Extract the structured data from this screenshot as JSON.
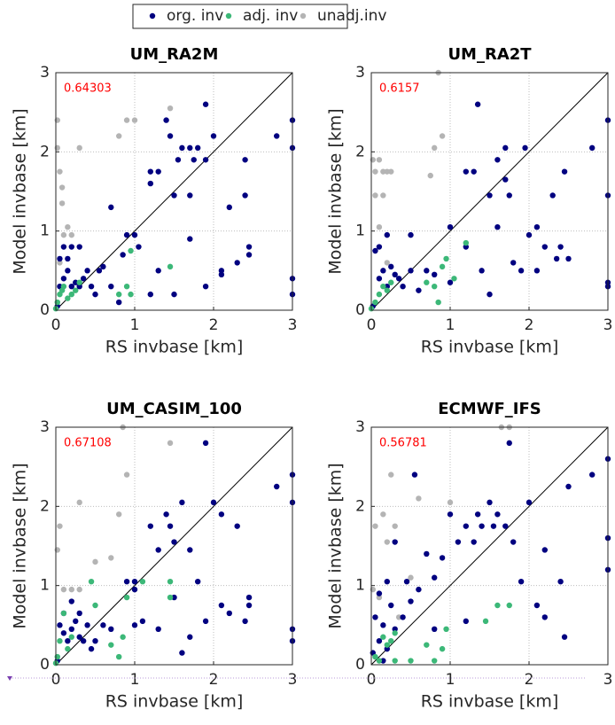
{
  "chart_data": [
    {
      "type": "scatter",
      "title": "UM_RA2M",
      "annotation": "0.64303",
      "xlabel": "RS invbase [km]",
      "ylabel": "Model invbase [km]",
      "xlim": [
        0,
        3
      ],
      "ylim": [
        0,
        3
      ],
      "xticks": [
        0,
        1,
        2,
        3
      ],
      "yticks": [
        0,
        1,
        2,
        3
      ],
      "grid": true,
      "legend": "top",
      "series": [
        {
          "name": "org. inv",
          "color": "#000080",
          "x": [
            0.02,
            0.05,
            0.1,
            0.15,
            0.2,
            0.25,
            0.3,
            0.35,
            0.4,
            0.45,
            0.5,
            0.55,
            0.6,
            0.1,
            0.2,
            0.3,
            0.05,
            0.15,
            0.7,
            0.8,
            0.9,
            1.0,
            1.2,
            1.2,
            1.3,
            1.3,
            1.4,
            1.45,
            1.5,
            1.55,
            1.6,
            1.7,
            1.7,
            1.75,
            1.8,
            1.9,
            1.9,
            2.0,
            2.1,
            2.1,
            2.2,
            2.3,
            2.4,
            2.45,
            2.45,
            2.4,
            2.8,
            3.0,
            3.0,
            3.0,
            3.0,
            1.5,
            1.9,
            1.2,
            1.7,
            0.7,
            0.85,
            1.05
          ],
          "values": [
            0.05,
            0.3,
            0.4,
            0.5,
            0.3,
            0.35,
            0.3,
            0.4,
            0.5,
            0.3,
            0.2,
            0.5,
            0.55,
            0.8,
            0.8,
            0.8,
            0.65,
            0.65,
            1.3,
            0.1,
            0.95,
            0.95,
            1.6,
            1.75,
            1.75,
            0.5,
            2.4,
            2.2,
            1.45,
            1.9,
            2.05,
            2.05,
            0.9,
            1.9,
            2.05,
            2.6,
            1.9,
            2.2,
            0.45,
            0.5,
            1.3,
            0.6,
            1.45,
            0.8,
            0.7,
            1.9,
            2.2,
            2.4,
            2.05,
            0.4,
            0.2,
            0.2,
            0.3,
            0.2,
            1.45,
            0.3,
            0.7,
            0.8
          ]
        },
        {
          "name": "adj. inv",
          "color": "#3cb878",
          "x": [
            0.0,
            0.02,
            0.05,
            0.08,
            0.1,
            0.15,
            0.2,
            0.25,
            0.3,
            0.8,
            0.9,
            0.95,
            0.95,
            1.45
          ],
          "values": [
            0.02,
            0.1,
            0.2,
            0.25,
            0.3,
            0.15,
            0.2,
            0.25,
            0.35,
            0.2,
            0.3,
            0.2,
            0.75,
            0.55
          ]
        },
        {
          "name": "unadj.inv",
          "color": "#b4b4b4",
          "x": [
            0.02,
            0.02,
            0.05,
            0.08,
            0.08,
            0.1,
            0.15,
            0.2,
            0.3,
            0.8,
            0.9,
            1.0,
            1.45,
            0.05
          ],
          "values": [
            2.4,
            2.05,
            1.75,
            1.55,
            1.35,
            0.95,
            1.05,
            0.95,
            2.05,
            2.2,
            2.4,
            2.4,
            2.55,
            0.6
          ]
        }
      ]
    },
    {
      "type": "scatter",
      "title": "UM_RA2T",
      "annotation": "0.6157",
      "xlabel": "RS invbase [km]",
      "ylabel": "Model invbase [km]",
      "xlim": [
        0,
        3
      ],
      "ylim": [
        0,
        3
      ],
      "xticks": [
        0,
        1,
        2,
        3
      ],
      "yticks": [
        0,
        1,
        2,
        3
      ],
      "grid": true,
      "series": [
        {
          "color": "#000080",
          "x": [
            0.02,
            0.1,
            0.15,
            0.2,
            0.25,
            0.3,
            0.35,
            0.4,
            0.5,
            0.6,
            0.7,
            0.8,
            0.1,
            0.2,
            0.05,
            0.5,
            1.0,
            1.0,
            1.2,
            1.3,
            1.35,
            1.4,
            1.5,
            1.6,
            1.7,
            1.7,
            1.75,
            1.8,
            1.9,
            1.95,
            2.0,
            2.1,
            2.2,
            2.3,
            2.35,
            2.4,
            2.45,
            2.5,
            2.8,
            3.0,
            3.0,
            3.0,
            3.0,
            2.1,
            1.5,
            1.2,
            1.6
          ],
          "values": [
            0.05,
            0.4,
            0.5,
            0.3,
            0.55,
            0.45,
            0.4,
            0.3,
            0.5,
            0.25,
            0.5,
            0.45,
            0.8,
            0.95,
            0.75,
            0.95,
            1.05,
            0.35,
            1.75,
            1.75,
            2.6,
            0.5,
            1.45,
            1.9,
            2.05,
            1.65,
            1.45,
            0.6,
            0.5,
            2.05,
            0.95,
            1.05,
            0.8,
            1.45,
            0.65,
            0.8,
            1.75,
            0.65,
            2.05,
            2.4,
            1.45,
            0.35,
            0.3,
            0.5,
            0.2,
            0.8,
            1.05
          ]
        },
        {
          "color": "#3cb878",
          "x": [
            0.0,
            0.05,
            0.1,
            0.15,
            0.2,
            0.25,
            0.7,
            0.8,
            0.85,
            0.9,
            0.95,
            1.05,
            1.2
          ],
          "values": [
            0.02,
            0.1,
            0.2,
            0.3,
            0.25,
            0.35,
            0.35,
            0.3,
            0.1,
            0.55,
            0.65,
            0.4,
            0.85
          ]
        },
        {
          "color": "#b4b4b4",
          "x": [
            0.02,
            0.05,
            0.1,
            0.15,
            0.2,
            0.25,
            0.05,
            0.15,
            0.1,
            0.2,
            0.75,
            0.8,
            0.9,
            0.85
          ],
          "values": [
            1.9,
            1.75,
            1.9,
            1.75,
            1.75,
            1.75,
            1.45,
            1.45,
            1.05,
            0.6,
            1.7,
            2.05,
            2.2,
            3.0
          ]
        }
      ]
    },
    {
      "type": "scatter",
      "title": "UM_CASIM_100",
      "annotation": "0.67108",
      "xlabel": "RS invbase [km]",
      "ylabel": "Model invbase [km]",
      "xlim": [
        0,
        3
      ],
      "ylim": [
        0,
        3
      ],
      "xticks": [
        0,
        1,
        2,
        3
      ],
      "yticks": [
        0,
        1,
        2,
        3
      ],
      "grid": true,
      "series": [
        {
          "color": "#000080",
          "x": [
            0.02,
            0.05,
            0.1,
            0.15,
            0.2,
            0.25,
            0.3,
            0.35,
            0.4,
            0.45,
            0.5,
            0.1,
            0.2,
            0.3,
            0.6,
            0.7,
            0.9,
            1.0,
            1.0,
            1.1,
            1.2,
            1.3,
            1.3,
            1.4,
            1.45,
            1.5,
            1.6,
            1.6,
            1.7,
            1.7,
            1.8,
            1.9,
            1.9,
            2.0,
            2.1,
            2.1,
            2.2,
            2.3,
            2.4,
            2.45,
            2.45,
            2.8,
            3.0,
            3.0,
            3.0,
            3.0,
            1.0,
            1.5
          ],
          "values": [
            0.05,
            0.5,
            0.4,
            0.3,
            0.45,
            0.55,
            0.35,
            0.3,
            0.5,
            0.2,
            0.3,
            0.65,
            0.8,
            0.65,
            0.5,
            0.45,
            1.05,
            1.05,
            0.95,
            0.55,
            1.75,
            1.45,
            0.45,
            1.9,
            1.75,
            1.55,
            0.15,
            2.05,
            0.35,
            1.45,
            1.05,
            2.8,
            0.55,
            2.05,
            1.9,
            0.75,
            0.65,
            1.75,
            0.55,
            0.85,
            0.75,
            2.25,
            2.4,
            2.05,
            0.45,
            0.3,
            0.5,
            0.85
          ]
        },
        {
          "color": "#3cb878",
          "x": [
            0.0,
            0.02,
            0.05,
            0.1,
            0.15,
            0.2,
            0.45,
            0.5,
            0.7,
            0.8,
            0.85,
            0.9,
            1.1,
            1.45,
            1.45
          ],
          "values": [
            0.02,
            0.1,
            0.3,
            0.65,
            0.2,
            0.35,
            1.05,
            0.75,
            0.25,
            0.1,
            0.35,
            0.85,
            1.05,
            0.85,
            1.05
          ]
        },
        {
          "color": "#b4b4b4",
          "x": [
            0.02,
            0.05,
            0.1,
            0.2,
            0.3,
            0.3,
            0.5,
            0.7,
            0.8,
            0.9,
            0.85,
            1.45
          ],
          "values": [
            1.45,
            1.75,
            0.95,
            0.95,
            0.95,
            2.05,
            1.3,
            1.35,
            1.9,
            2.4,
            3.0,
            2.8
          ]
        }
      ]
    },
    {
      "type": "scatter",
      "title": "ECMWF_IFS",
      "annotation": "0.56781",
      "xlabel": "RS invbase [km]",
      "ylabel": "Model invbase [km]",
      "xlim": [
        0,
        3
      ],
      "ylim": [
        0,
        3
      ],
      "xticks": [
        0,
        1,
        2,
        3
      ],
      "yticks": [
        0,
        1,
        2,
        3
      ],
      "grid": true,
      "series": [
        {
          "color": "#000080",
          "x": [
            0.02,
            0.05,
            0.1,
            0.1,
            0.15,
            0.2,
            0.25,
            0.3,
            0.3,
            0.4,
            0.45,
            0.5,
            0.55,
            0.6,
            0.7,
            0.8,
            0.8,
            0.9,
            1.0,
            1.1,
            1.2,
            1.2,
            1.3,
            1.35,
            1.4,
            1.5,
            1.55,
            1.6,
            1.7,
            1.75,
            1.8,
            1.9,
            2.0,
            2.1,
            2.2,
            2.2,
            2.4,
            2.45,
            2.5,
            2.8,
            3.0,
            3.0,
            3.0,
            0.15,
            0.2
          ],
          "values": [
            0.15,
            0.6,
            0.9,
            0.3,
            0.5,
            1.05,
            0.75,
            1.55,
            0.45,
            0.6,
            1.05,
            0.8,
            2.4,
            0.95,
            1.4,
            1.1,
            0.45,
            1.35,
            1.9,
            1.55,
            0.55,
            1.75,
            1.55,
            1.9,
            1.75,
            2.05,
            1.75,
            1.9,
            1.75,
            2.8,
            1.55,
            1.05,
            2.05,
            0.75,
            1.45,
            0.6,
            1.05,
            0.35,
            2.25,
            2.4,
            2.6,
            1.6,
            1.2,
            0.05,
            0.2
          ]
        },
        {
          "color": "#3cb878",
          "x": [
            0.05,
            0.1,
            0.15,
            0.2,
            0.25,
            0.3,
            0.5,
            0.7,
            0.8,
            0.9,
            0.95,
            1.45,
            1.6,
            1.75,
            0.3
          ],
          "values": [
            0.1,
            0.05,
            0.35,
            0.25,
            0.3,
            0.4,
            0.05,
            0.25,
            0.05,
            0.2,
            0.45,
            0.55,
            0.75,
            0.75,
            0.05
          ]
        },
        {
          "color": "#b4b4b4",
          "x": [
            0.02,
            0.05,
            0.1,
            0.15,
            0.2,
            0.25,
            0.3,
            0.35,
            0.5,
            0.6,
            1.0,
            1.65,
            1.75
          ],
          "values": [
            0.95,
            1.75,
            0.85,
            1.9,
            1.55,
            2.4,
            1.75,
            0.6,
            1.1,
            2.1,
            2.05,
            3.0,
            3.0
          ]
        }
      ]
    }
  ]
}
